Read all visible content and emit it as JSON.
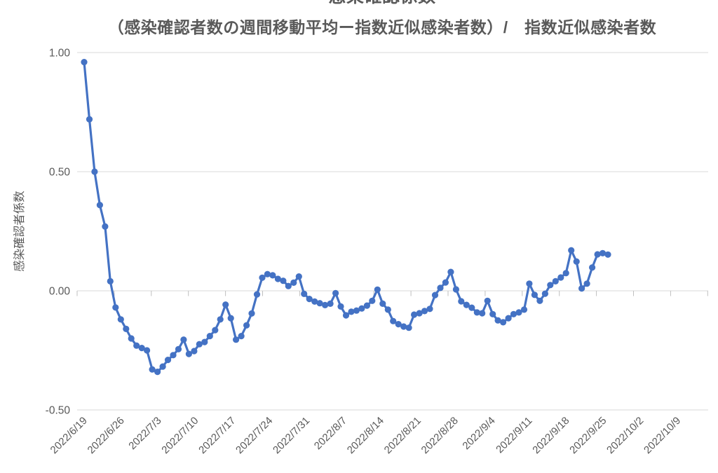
{
  "chart_data": {
    "type": "line",
    "title": "感染確認係数",
    "subtitle": "（感染確認者数の週間移動平均ー指数近似感染者数）/　指数近似感染者数",
    "ylabel": "感染確認者係数",
    "xlabel": "",
    "ylim": [
      -0.5,
      1.0
    ],
    "y_tick_labels": [
      "1.00",
      "0.50",
      "0.00",
      "-0.50"
    ],
    "y_tick_values": [
      1.0,
      0.5,
      0.0,
      -0.5
    ],
    "x_tick_labels": [
      "2022/6/19",
      "2022/6/26",
      "2022/7/3",
      "2022/7/10",
      "2022/7/17",
      "2022/7/24",
      "2022/7/31",
      "2022/8/7",
      "2022/8/14",
      "2022/8/21",
      "2022/8/28",
      "2022/9/4",
      "2022/9/11",
      "2022/9/18",
      "2022/9/25",
      "2022/10/2",
      "2022/10/9"
    ],
    "grid": "horizontal",
    "legend": "none",
    "series": [
      {
        "name": "感染確認者係数",
        "start_date": "2022/6/19",
        "frequency": "daily",
        "color": "#4472C4",
        "marker": "circle",
        "values": [
          0.96,
          0.72,
          0.5,
          0.36,
          0.27,
          0.04,
          -0.07,
          -0.12,
          -0.16,
          -0.2,
          -0.23,
          -0.24,
          -0.25,
          -0.33,
          -0.34,
          -0.318,
          -0.29,
          -0.27,
          -0.245,
          -0.205,
          -0.265,
          -0.253,
          -0.224,
          -0.215,
          -0.19,
          -0.165,
          -0.12,
          -0.058,
          -0.115,
          -0.205,
          -0.19,
          -0.145,
          -0.095,
          -0.015,
          0.055,
          0.07,
          0.065,
          0.05,
          0.042,
          0.02,
          0.034,
          0.06,
          -0.013,
          -0.034,
          -0.045,
          -0.052,
          -0.06,
          -0.054,
          -0.01,
          -0.066,
          -0.103,
          -0.088,
          -0.083,
          -0.074,
          -0.062,
          -0.042,
          0.005,
          -0.054,
          -0.079,
          -0.127,
          -0.14,
          -0.15,
          -0.155,
          -0.1,
          -0.094,
          -0.085,
          -0.076,
          -0.018,
          0.012,
          0.035,
          0.079,
          0.006,
          -0.044,
          -0.059,
          -0.071,
          -0.091,
          -0.094,
          -0.042,
          -0.098,
          -0.124,
          -0.132,
          -0.115,
          -0.098,
          -0.091,
          -0.079,
          0.03,
          -0.017,
          -0.042,
          -0.012,
          0.024,
          0.04,
          0.056,
          0.074,
          0.17,
          0.123,
          0.01,
          0.03,
          0.098,
          0.153,
          0.158,
          0.152
        ]
      }
    ]
  },
  "colors": {
    "accent": "#4472C4",
    "text": "#595959",
    "gridline": "#D9D9D9",
    "axis_tick": "#BFBFBF",
    "background": "#FFFFFF"
  }
}
